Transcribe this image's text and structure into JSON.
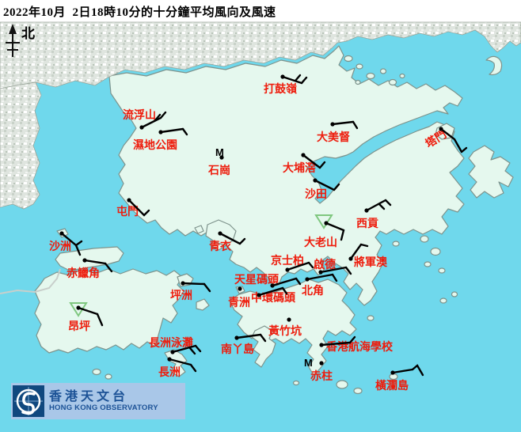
{
  "header": {
    "title": "2022年10月  2日18時10分的十分鐘平均風向及風速"
  },
  "map": {
    "north_label": "北",
    "missing_symbol": "M"
  },
  "logo": {
    "chinese": "香港天文台",
    "english": "HONG KONG OBSERVATORY"
  },
  "colors": {
    "sea": "#6FD8EC",
    "land": "#E5F8EE",
    "coast": "#7E938C",
    "urban": "#DFE5DF",
    "label": "#EE1C0C",
    "barb": "#000000",
    "calm_triangle": "#7FC77F",
    "logo_bg": "#A9C7E8",
    "logo_blue": "#10487E",
    "logo_text": "#1C5296"
  },
  "stations": [
    {
      "name": "流浮山",
      "dot": [
        179,
        161
      ],
      "label": [
        155,
        150
      ],
      "barb": [
        [
          [
            179,
            161
          ],
          [
            203,
            149
          ]
        ],
        [
          [
            203,
            149
          ],
          [
            209,
            142
          ]
        ],
        [
          [
            196,
            152
          ],
          [
            202,
            145
          ]
        ]
      ]
    },
    {
      "name": "濕地公園",
      "dot": [
        203,
        167
      ],
      "label": [
        168,
        188
      ],
      "barb": [
        [
          [
            203,
            167
          ],
          [
            231,
            163
          ]
        ],
        [
          [
            231,
            163
          ],
          [
            236,
            170
          ]
        ]
      ]
    },
    {
      "name": "打鼓嶺",
      "dot": [
        357,
        97
      ],
      "label": [
        333,
        117
      ],
      "barb": [
        [
          [
            357,
            97
          ],
          [
            381,
            105
          ]
        ],
        [
          [
            381,
            105
          ],
          [
            387,
            98
          ]
        ],
        [
          [
            373,
            102
          ],
          [
            379,
            95
          ]
        ]
      ]
    },
    {
      "name": "石崗",
      "dot": [
        280,
        199
      ],
      "label": [
        263,
        220
      ],
      "m": [
        272,
        197
      ],
      "barb": []
    },
    {
      "name": "大美督",
      "dot": [
        420,
        157
      ],
      "label": [
        400,
        178
      ],
      "barb": [
        [
          [
            420,
            157
          ],
          [
            446,
            154
          ]
        ],
        [
          [
            446,
            154
          ],
          [
            451,
            162
          ]
        ]
      ]
    },
    {
      "name": "塔門",
      "dot": [
        557,
        163
      ],
      "label": [
        541,
        187
      ],
      "rotate": -32,
      "barb": [
        [
          [
            557,
            163
          ],
          [
            574,
            176
          ],
          [
            583,
            192
          ]
        ],
        [
          [
            583,
            192
          ],
          [
            589,
            187
          ]
        ]
      ]
    },
    {
      "name": "大埔滘",
      "dot": [
        383,
        196
      ],
      "label": [
        357,
        217
      ],
      "barb": [
        [
          [
            383,
            196
          ],
          [
            404,
            212
          ]
        ],
        [
          [
            404,
            212
          ],
          [
            410,
            205
          ]
        ]
      ]
    },
    {
      "name": "沙田",
      "dot": [
        398,
        228
      ],
      "label": [
        385,
        250
      ],
      "barb": [
        [
          [
            398,
            228
          ],
          [
            422,
            240
          ]
        ],
        [
          [
            422,
            240
          ],
          [
            428,
            233
          ]
        ]
      ]
    },
    {
      "name": "西貢",
      "dot": [
        463,
        266
      ],
      "label": [
        450,
        287
      ],
      "barb": [
        [
          [
            463,
            266
          ],
          [
            487,
            253
          ]
        ],
        [
          [
            487,
            253
          ],
          [
            493,
            259
          ]
        ],
        [
          [
            479,
            258
          ],
          [
            485,
            264
          ]
        ]
      ]
    },
    {
      "name": "屯門",
      "dot": [
        163,
        253
      ],
      "label": [
        147,
        272
      ],
      "barb": [
        [
          [
            163,
            253
          ],
          [
            182,
            272
          ]
        ],
        [
          [
            182,
            272
          ],
          [
            188,
            266
          ]
        ]
      ]
    },
    {
      "name": "沙洲",
      "dot": [
        78,
        295
      ],
      "label": [
        62,
        316
      ],
      "barb": [
        [
          [
            78,
            295
          ],
          [
            96,
            310
          ],
          [
            101,
            322
          ]
        ],
        [
          [
            96,
            310
          ],
          [
            103,
            305
          ]
        ]
      ]
    },
    {
      "name": "赤鱲角",
      "dot": [
        107,
        329
      ],
      "label": [
        84,
        350
      ],
      "barb": [
        [
          [
            107,
            329
          ],
          [
            133,
            333
          ]
        ],
        [
          [
            133,
            333
          ],
          [
            141,
            343
          ]
        ]
      ]
    },
    {
      "name": "青衣",
      "dot": [
        278,
        295
      ],
      "label": [
        264,
        316
      ],
      "barb": [
        [
          [
            278,
            295
          ],
          [
            303,
            308
          ]
        ],
        [
          [
            303,
            308
          ],
          [
            309,
            302
          ]
        ]
      ]
    },
    {
      "name": "大老山",
      "dot": [
        412,
        282
      ],
      "label": [
        384,
        311
      ],
      "triangle": [
        409,
        272
      ],
      "barb": [
        [
          [
            412,
            282
          ],
          [
            434,
            291
          ]
        ],
        [
          [
            434,
            291
          ],
          [
            431,
            303
          ]
        ]
      ]
    },
    {
      "name": "坪洲",
      "dot": [
        231,
        358
      ],
      "label": [
        215,
        378
      ],
      "barb": [
        [
          [
            231,
            358
          ],
          [
            258,
            359
          ]
        ],
        [
          [
            258,
            359
          ],
          [
            265,
            368
          ]
        ]
      ]
    },
    {
      "name": "將軍澳",
      "dot": [
        443,
        327
      ],
      "label": [
        447,
        336
      ],
      "barb": [
        [
          [
            443,
            327
          ],
          [
            456,
            309
          ]
        ],
        [
          [
            456,
            309
          ],
          [
            464,
            311
          ]
        ]
      ]
    },
    {
      "name": "京士柏",
      "dot": [
        363,
        341
      ],
      "label": [
        342,
        334
      ],
      "barb": [
        [
          [
            363,
            341
          ],
          [
            390,
            332
          ]
        ],
        [
          [
            390,
            332
          ],
          [
            395,
            338
          ]
        ]
      ]
    },
    {
      "name": "啟德",
      "dot": [
        405,
        344
      ],
      "label": [
        396,
        339
      ],
      "barb": [
        [
          [
            405,
            344
          ],
          [
            437,
            338
          ]
        ],
        [
          [
            437,
            338
          ],
          [
            443,
            346
          ]
        ]
      ]
    },
    {
      "name": "天星碼頭",
      "dot": [
        344,
        361
      ],
      "label": [
        296,
        358
      ],
      "barb": [
        [
          [
            344,
            361
          ],
          [
            374,
            352
          ]
        ],
        [
          [
            374,
            352
          ],
          [
            379,
            359
          ]
        ]
      ]
    },
    {
      "name": "中環碼頭",
      "dot": [
        327,
        373
      ],
      "label": [
        317,
        381
      ],
      "barb": [
        [
          [
            327,
            373
          ],
          [
            357,
            364
          ]
        ],
        [
          [
            357,
            364
          ],
          [
            362,
            371
          ]
        ]
      ]
    },
    {
      "name": "北角",
      "dot": [
        388,
        353
      ],
      "label": [
        381,
        372
      ],
      "barb": [
        [
          [
            388,
            353
          ],
          [
            420,
            347
          ]
        ],
        [
          [
            420,
            347
          ],
          [
            425,
            355
          ]
        ]
      ]
    },
    {
      "name": "青洲",
      "dot": [
        303,
        365
      ],
      "label": [
        288,
        387
      ],
      "barb": []
    },
    {
      "name": "黃竹坑",
      "dot": [
        365,
        404
      ],
      "label": [
        339,
        423
      ],
      "barb": []
    },
    {
      "name": "香港航海學校",
      "dot": [
        406,
        436
      ],
      "label": [
        412,
        443
      ],
      "barb": [
        [
          [
            406,
            436
          ],
          [
            442,
            433
          ]
        ],
        [
          [
            442,
            433
          ],
          [
            448,
            426
          ]
        ]
      ]
    },
    {
      "name": "赤柱",
      "dot": [
        406,
        459
      ],
      "label": [
        392,
        480
      ],
      "m": [
        384,
        463
      ],
      "barb": []
    },
    {
      "name": "橫瀾島",
      "dot": [
        496,
        471
      ],
      "label": [
        474,
        492
      ],
      "barb": [
        [
          [
            496,
            471
          ],
          [
            521,
            467
          ]
        ],
        [
          [
            521,
            467
          ],
          [
            527,
            462
          ],
          [
            534,
            474
          ]
        ]
      ]
    },
    {
      "name": "昂坪",
      "dot": [
        99,
        389
      ],
      "label": [
        86,
        417
      ],
      "triangle": [
        99,
        383
      ],
      "barb": [
        [
          [
            99,
            389
          ],
          [
            123,
            397
          ]
        ],
        [
          [
            123,
            397
          ],
          [
            129,
            411
          ]
        ]
      ]
    },
    {
      "name": "長洲泳灘",
      "dot": [
        218,
        445
      ],
      "label": [
        188,
        438
      ],
      "barb": [
        [
          [
            218,
            445
          ],
          [
            247,
            437
          ]
        ],
        [
          [
            247,
            437
          ],
          [
            253,
            444
          ]
        ],
        [
          [
            240,
            440
          ],
          [
            246,
            447
          ]
        ]
      ]
    },
    {
      "name": "長洲",
      "dot": [
        214,
        454
      ],
      "label": [
        200,
        475
      ],
      "barb": [
        [
          [
            214,
            454
          ],
          [
            241,
            461
          ]
        ],
        [
          [
            241,
            461
          ],
          [
            247,
            469
          ]
        ]
      ]
    },
    {
      "name": "南丫島",
      "dot": [
        299,
        427
      ],
      "label": [
        279,
        446
      ],
      "barb": [
        [
          [
            299,
            427
          ],
          [
            329,
            423
          ]
        ],
        [
          [
            329,
            423
          ],
          [
            335,
            431
          ]
        ]
      ]
    }
  ]
}
